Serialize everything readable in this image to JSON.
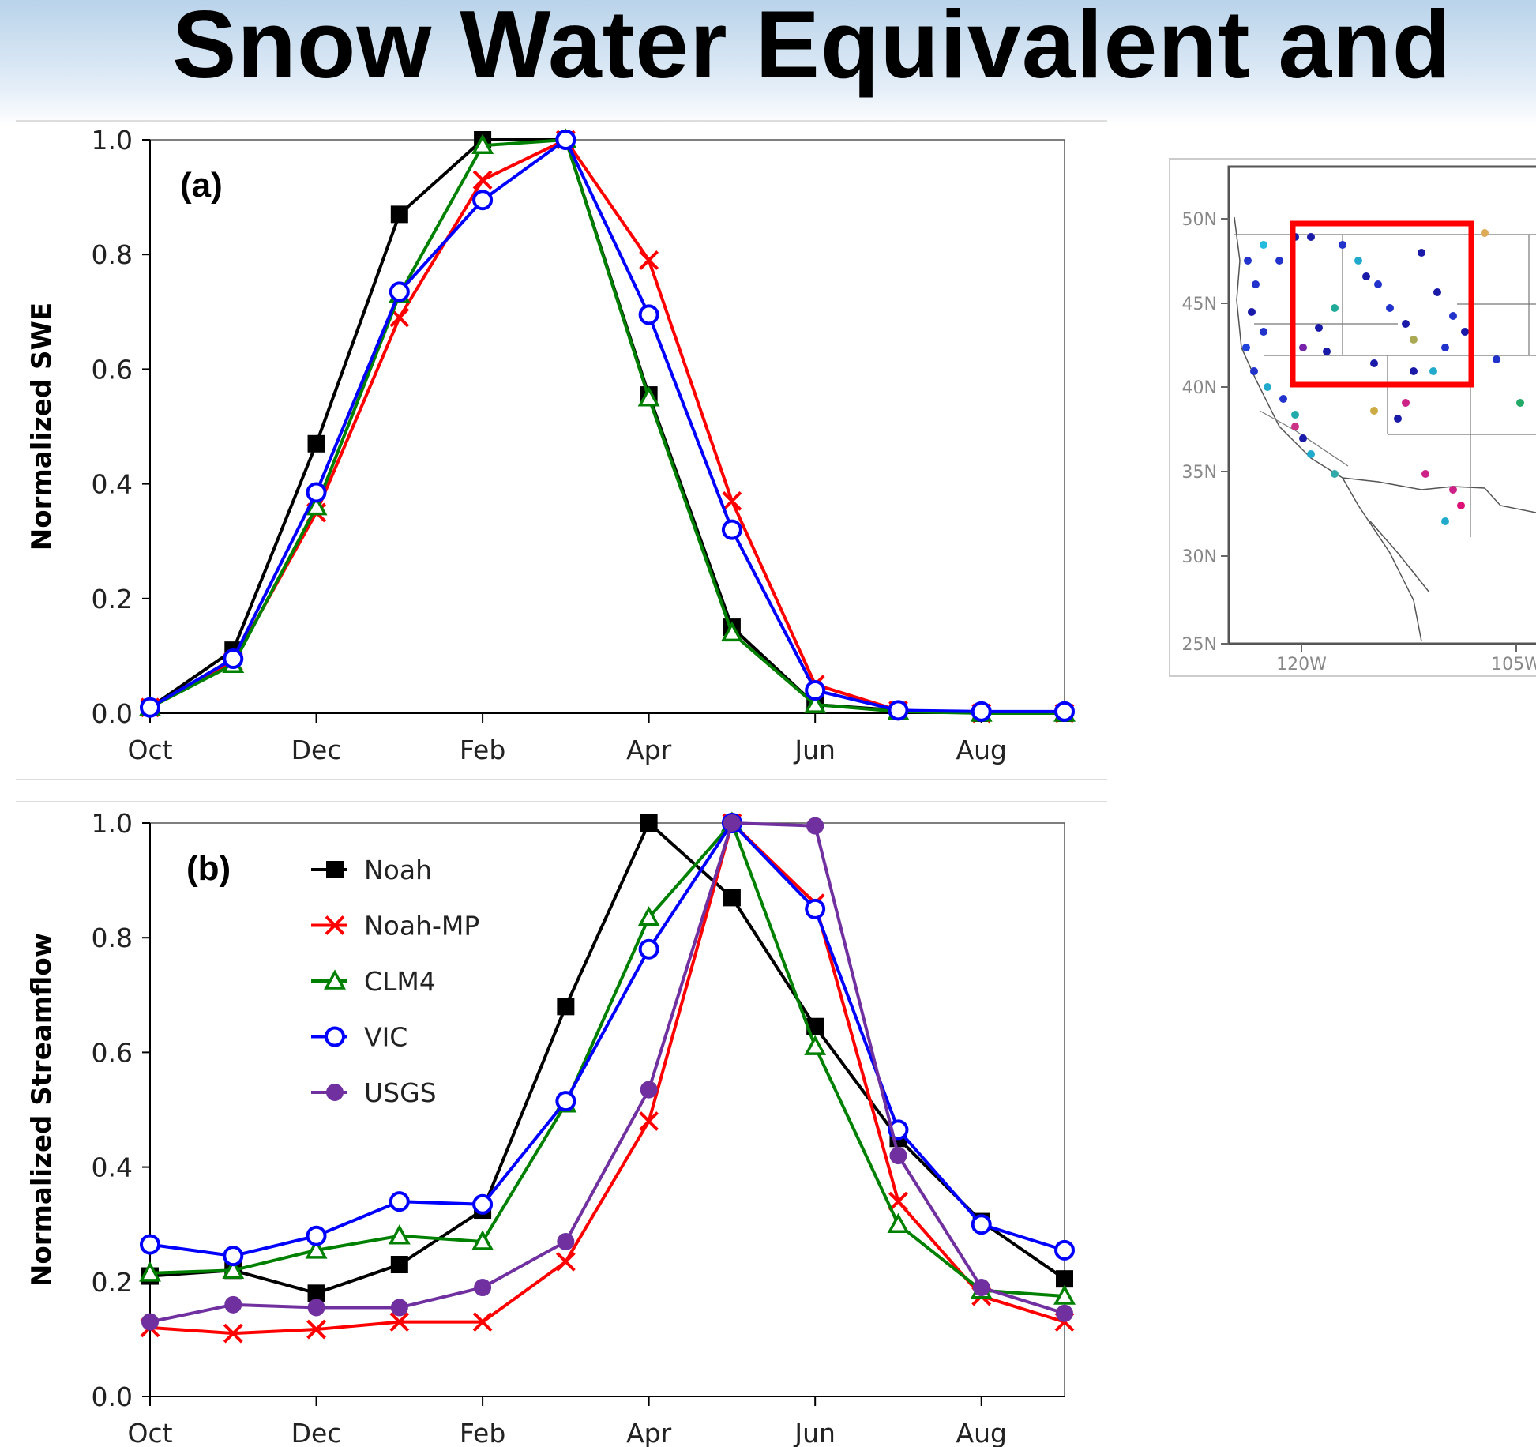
{
  "title": "Snow Water Equivalent and",
  "colors": {
    "Noah": "#000000",
    "Noah-MP": "#ff0000",
    "CLM4": "#008000",
    "VIC": "#0000ff",
    "USGS": "#7030a0"
  },
  "chart_data": [
    {
      "type": "line",
      "panel_label": "(a)",
      "ylabel": "Normalized SWE",
      "xlabel": "",
      "ylim": [
        0,
        1.0
      ],
      "yticks": [
        "0.0",
        "0.2",
        "0.4",
        "0.6",
        "0.8",
        "1.0"
      ],
      "x": [
        "Oct",
        "Nov",
        "Dec",
        "Jan",
        "Feb",
        "Mar",
        "Apr",
        "May",
        "Jun",
        "Jul",
        "Aug",
        "Sep"
      ],
      "xtick_labels": [
        "Oct",
        "Dec",
        "Feb",
        "Apr",
        "Jun",
        "Aug"
      ],
      "series": [
        {
          "name": "Noah",
          "marker": "square",
          "values": [
            0.01,
            0.11,
            0.47,
            0.87,
            1.0,
            1.0,
            0.555,
            0.15,
            0.015,
            0.005,
            0.0,
            0.0
          ]
        },
        {
          "name": "Noah-MP",
          "marker": "x",
          "values": [
            0.01,
            0.09,
            0.35,
            0.69,
            0.93,
            1.0,
            0.79,
            0.37,
            0.05,
            0.005,
            0.0,
            0.0
          ]
        },
        {
          "name": "CLM4",
          "marker": "triangle",
          "values": [
            0.01,
            0.085,
            0.36,
            0.73,
            0.99,
            1.0,
            0.55,
            0.14,
            0.015,
            0.003,
            0.0,
            0.0
          ]
        },
        {
          "name": "VIC",
          "marker": "circle-open",
          "values": [
            0.01,
            0.095,
            0.385,
            0.735,
            0.895,
            1.0,
            0.695,
            0.32,
            0.04,
            0.005,
            0.003,
            0.003
          ]
        }
      ]
    },
    {
      "type": "line",
      "panel_label": "(b)",
      "ylabel": "Normalized Streamflow",
      "xlabel": "",
      "ylim": [
        0,
        1.0
      ],
      "yticks": [
        "0.0",
        "0.2",
        "0.4",
        "0.6",
        "0.8",
        "1.0"
      ],
      "x": [
        "Oct",
        "Nov",
        "Dec",
        "Jan",
        "Feb",
        "Mar",
        "Apr",
        "May",
        "Jun",
        "Jul",
        "Aug",
        "Sep"
      ],
      "xtick_labels": [
        "Oct",
        "Dec",
        "Feb",
        "Apr",
        "Jun",
        "Aug"
      ],
      "legend": [
        "Noah",
        "Noah-MP",
        "CLM4",
        "VIC",
        "USGS"
      ],
      "legend_placement": "top-left",
      "series": [
        {
          "name": "Noah",
          "marker": "square",
          "values": [
            0.21,
            0.22,
            0.18,
            0.23,
            0.325,
            0.68,
            1.0,
            0.87,
            0.645,
            0.45,
            0.305,
            0.205
          ]
        },
        {
          "name": "Noah-MP",
          "marker": "x",
          "values": [
            0.12,
            0.11,
            0.117,
            0.13,
            0.13,
            0.235,
            0.48,
            1.0,
            0.86,
            0.34,
            0.175,
            0.13
          ]
        },
        {
          "name": "CLM4",
          "marker": "triangle",
          "values": [
            0.215,
            0.22,
            0.255,
            0.28,
            0.27,
            0.51,
            0.835,
            1.0,
            0.61,
            0.3,
            0.185,
            0.175
          ]
        },
        {
          "name": "VIC",
          "marker": "circle-open",
          "values": [
            0.265,
            0.245,
            0.28,
            0.34,
            0.335,
            0.515,
            0.78,
            1.0,
            0.85,
            0.465,
            0.3,
            0.255
          ]
        },
        {
          "name": "USGS",
          "marker": "circle-filled",
          "values": [
            0.13,
            0.16,
            0.155,
            0.155,
            0.19,
            0.27,
            0.535,
            1.0,
            0.995,
            0.42,
            0.19,
            0.145
          ]
        }
      ]
    }
  ],
  "map": {
    "lat_labels": [
      "50N",
      "45N",
      "40N",
      "35N",
      "30N",
      "25N"
    ],
    "lon_labels": [
      "120W",
      "105W"
    ]
  }
}
